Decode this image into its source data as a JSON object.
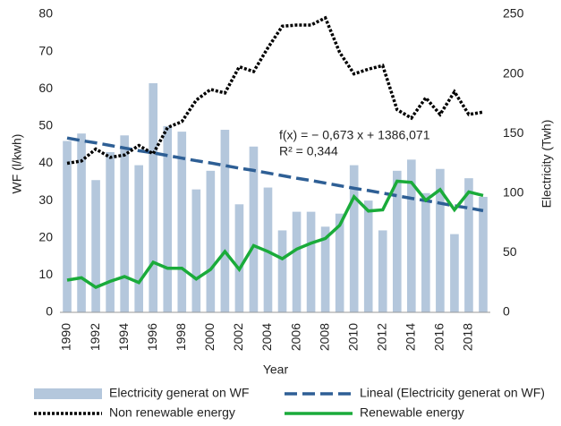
{
  "chart_data": {
    "type": "bar",
    "x_label": "Year",
    "y_label": "WF (l/kwh)",
    "y2_label": "Electricity (Twh)",
    "annotations": [
      "f(x) = − 0,673 x + 1386,071",
      "R² = 0,344"
    ],
    "categories": [
      "1990",
      null,
      "1992",
      null,
      "1994",
      null,
      "1996",
      null,
      "1998",
      null,
      "2000",
      null,
      "2002",
      null,
      "2004",
      null,
      "2006",
      null,
      "2008",
      null,
      "2010",
      null,
      "2012",
      null,
      "2014",
      null,
      "2016",
      null,
      "2018",
      null
    ],
    "series": [
      {
        "name": "Electricity generat on WF",
        "type": "bar",
        "color": "#b4c7dc",
        "values": [
          46,
          48,
          35.5,
          43,
          47.5,
          39.5,
          61.5,
          50,
          48.5,
          33,
          38,
          49,
          29,
          44.5,
          33.5,
          22,
          27,
          27,
          23,
          26.5,
          39.5,
          30,
          22,
          38,
          41,
          32,
          38.5,
          21,
          36,
          31
        ]
      },
      {
        "name": "Lineal (Electricity generat on WF)",
        "type": "line",
        "dash": "dashed",
        "color": "#2e5f95",
        "values": [
          46.8,
          46.1,
          45.5,
          44.8,
          44.1,
          43.4,
          42.8,
          42.1,
          41.4,
          40.7,
          40.1,
          39.4,
          38.7,
          38.1,
          37.4,
          36.7,
          36.0,
          35.4,
          34.7,
          34.0,
          33.3,
          32.7,
          32.0,
          31.3,
          30.6,
          30.0,
          29.3,
          28.6,
          28.0,
          27.3
        ]
      },
      {
        "name": "Non renewable energy",
        "type": "line",
        "dash": "dotted",
        "axis": "y2",
        "color": "#000000",
        "values": [
          125,
          127,
          137,
          130,
          132,
          140,
          133,
          155,
          160,
          178,
          187,
          184,
          206,
          202,
          222,
          240,
          241,
          241,
          247,
          218,
          200,
          204,
          207,
          170,
          163,
          180,
          166,
          185,
          166,
          168
        ]
      },
      {
        "name": "Renewable energy",
        "type": "line",
        "dash": "solid",
        "axis": "y2",
        "color": "#1aab3a",
        "values": [
          27,
          29,
          21,
          26,
          30,
          25,
          42,
          37,
          37,
          28,
          36,
          51,
          36,
          56,
          51,
          45,
          53,
          58,
          62,
          73,
          97,
          85,
          86,
          110,
          109,
          94,
          103,
          86,
          101,
          98
        ]
      }
    ],
    "ylim": [
      0,
      80
    ],
    "yticks": [
      0,
      10,
      20,
      30,
      40,
      50,
      60,
      70,
      80
    ],
    "y2lim": [
      0,
      250
    ],
    "y2ticks": [
      0,
      50,
      100,
      150,
      200,
      250
    ],
    "grid": false,
    "legend": "bottom"
  }
}
